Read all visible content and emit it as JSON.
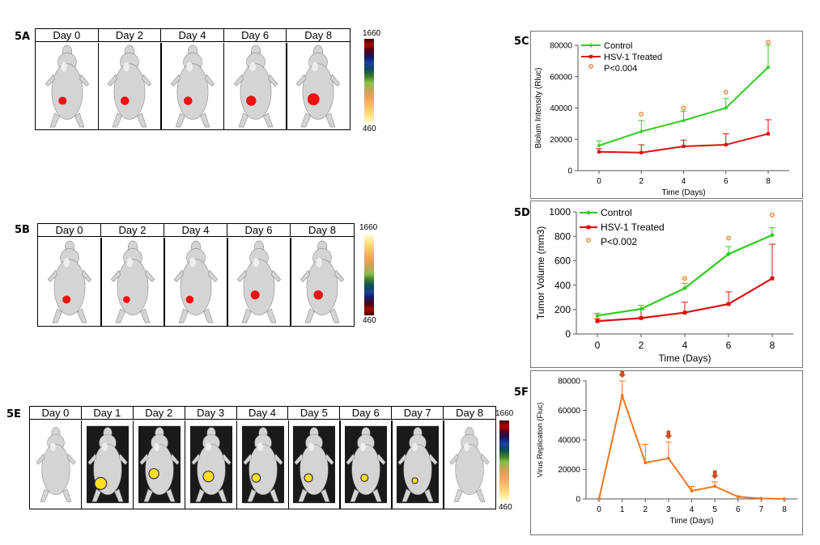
{
  "panels": {
    "a": {
      "label": "5A",
      "days": [
        "Day 0",
        "Day 2",
        "Day 4",
        "Day 6",
        "Day 8"
      ],
      "cbar_max": "1660",
      "cbar_min": "460",
      "tumor_intensity": [
        0.45,
        0.5,
        0.5,
        0.7,
        0.95
      ]
    },
    "b": {
      "label": "5B",
      "days": [
        "Day 0",
        "Day 2",
        "Day 4",
        "Day 6",
        "Day 8"
      ],
      "cbar_max": "1660",
      "cbar_min": "460",
      "tumor_intensity": [
        0.45,
        0.3,
        0.4,
        0.55,
        0.6
      ]
    },
    "e": {
      "label": "5E",
      "days": [
        "Day 0",
        "Day 1",
        "Day 2",
        "Day 3",
        "Day 4",
        "Day 5",
        "Day 6",
        "Day 7",
        "Day 8"
      ],
      "cbar_max": "1660",
      "cbar_min": "460",
      "tumor_intensity": [
        0,
        1,
        0.7,
        0.8,
        0.5,
        0.45,
        0.3,
        0.1,
        0
      ]
    },
    "c": {
      "label": "5C"
    },
    "d": {
      "label": "5D"
    },
    "f": {
      "label": "5F"
    }
  },
  "colors": {
    "control": "#33cc22",
    "treated": "#dd1111",
    "virus": "#ee7722",
    "sig": "#f08030"
  },
  "chart_data": [
    {
      "id": "5C",
      "type": "line",
      "x": [
        0,
        2,
        4,
        6,
        8
      ],
      "xlabel": "Time (Days)",
      "ylabel": "Biolum Intensity (Rluc)",
      "ylim": [
        0,
        80000
      ],
      "yticks": [
        0,
        20000,
        40000,
        60000,
        80000
      ],
      "series": [
        {
          "name": "Control",
          "values": [
            16000,
            25000,
            32000,
            40000,
            66000
          ],
          "err": [
            3000,
            7000,
            6000,
            6000,
            14000
          ],
          "marker": "diamond"
        },
        {
          "name": "HSV-1 Treated",
          "values": [
            12000,
            11500,
            15500,
            16500,
            23500
          ],
          "err": [
            2000,
            5000,
            4000,
            7000,
            9000
          ],
          "marker": "square"
        }
      ],
      "sig_label": "P<0.004",
      "sig_x": [
        2,
        4,
        6,
        8
      ],
      "sig_y": [
        36000,
        40000,
        50000,
        82000
      ],
      "legend": "top-left"
    },
    {
      "id": "5D",
      "type": "line",
      "x": [
        0,
        2,
        4,
        6,
        8
      ],
      "xlabel": "Time (Days)",
      "ylabel": "Tumor Volume (mm3)",
      "ylim": [
        0,
        1000
      ],
      "yticks": [
        0,
        200,
        400,
        600,
        800,
        1000
      ],
      "series": [
        {
          "name": "Control",
          "values": [
            150,
            205,
            375,
            655,
            810
          ],
          "err": [
            20,
            30,
            40,
            60,
            60
          ],
          "marker": "diamond"
        },
        {
          "name": "HSV-1 Treated",
          "values": [
            105,
            130,
            175,
            245,
            455
          ],
          "err": [
            20,
            70,
            85,
            100,
            280
          ],
          "marker": "square"
        }
      ],
      "sig_label": "P<0.002",
      "sig_x": [
        4,
        6,
        8
      ],
      "sig_y": [
        455,
        785,
        975
      ],
      "legend": "top-left"
    },
    {
      "id": "5F",
      "type": "line",
      "x": [
        0,
        1,
        2,
        3,
        4,
        5,
        6,
        7,
        8
      ],
      "xlabel": "Time (Days)",
      "ylabel": "Virus Replication (Fluc)",
      "ylim": [
        0,
        80000
      ],
      "yticks": [
        0,
        20000,
        40000,
        60000,
        80000
      ],
      "series": [
        {
          "name": "Virus",
          "values": [
            0,
            70000,
            24500,
            27500,
            5500,
            8500,
            1500,
            300,
            0
          ],
          "err": [
            0,
            10000,
            12500,
            11000,
            3000,
            3000,
            500,
            0,
            0
          ],
          "marker": "square"
        }
      ],
      "arrows_at": [
        1,
        3,
        5
      ]
    }
  ]
}
